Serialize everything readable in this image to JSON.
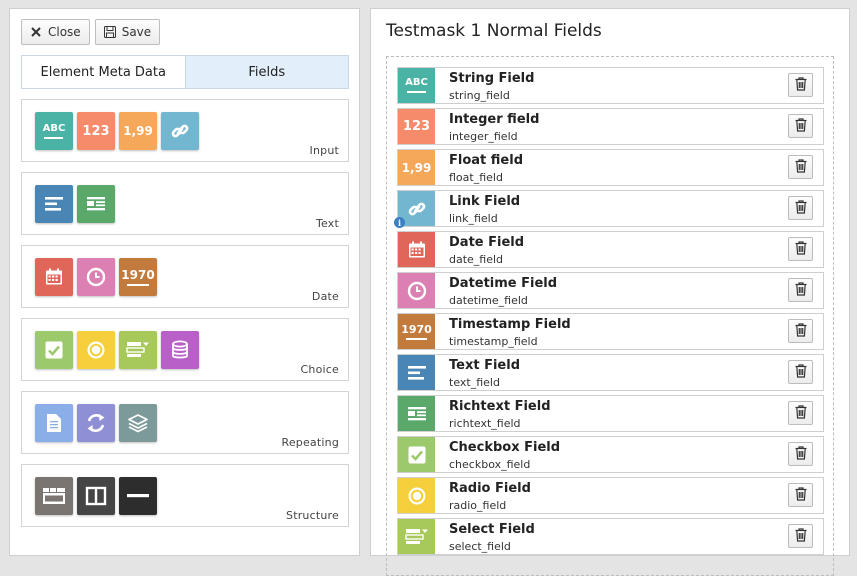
{
  "toolbar": {
    "close_label": "Close",
    "save_label": "Save"
  },
  "tabs": [
    {
      "label": "Element Meta Data",
      "active": false
    },
    {
      "label": "Fields",
      "active": true
    }
  ],
  "groups": [
    {
      "label": "Input",
      "icons": [
        {
          "name": "abc-icon",
          "text": "ABC",
          "color": "#4bb3a6"
        },
        {
          "name": "integer-icon",
          "text": "123",
          "color": "#f58b6b"
        },
        {
          "name": "float-icon",
          "text": "1,99",
          "color": "#f5a85a"
        },
        {
          "name": "link-icon",
          "text": "",
          "color": "#73b6cf"
        }
      ]
    },
    {
      "label": "Text",
      "icons": [
        {
          "name": "text-icon",
          "text": "",
          "color": "#4a86b5"
        },
        {
          "name": "richtext-icon",
          "text": "",
          "color": "#5aa96a"
        }
      ]
    },
    {
      "label": "Date",
      "icons": [
        {
          "name": "calendar-icon",
          "text": "",
          "color": "#e0665a"
        },
        {
          "name": "clock-icon",
          "text": "",
          "color": "#dc7fb3"
        },
        {
          "name": "timestamp-icon",
          "text": "1970",
          "color": "#c27b3c"
        }
      ]
    },
    {
      "label": "Choice",
      "icons": [
        {
          "name": "checkbox-icon",
          "text": "",
          "color": "#9cc96b"
        },
        {
          "name": "radio-icon",
          "text": "",
          "color": "#f5cf3c"
        },
        {
          "name": "select-icon",
          "text": "",
          "color": "#a7c95a"
        },
        {
          "name": "database-icon",
          "text": "",
          "color": "#b85fc8"
        }
      ]
    },
    {
      "label": "Repeating",
      "icons": [
        {
          "name": "document-icon",
          "text": "",
          "color": "#8aaee8"
        },
        {
          "name": "refresh-icon",
          "text": "",
          "color": "#8f8fd6"
        },
        {
          "name": "layers-icon",
          "text": "",
          "color": "#7d9a9a"
        }
      ]
    },
    {
      "label": "Structure",
      "icons": [
        {
          "name": "tab-icon",
          "text": "",
          "color": "#7a7570"
        },
        {
          "name": "columns-icon",
          "text": "",
          "color": "#454545"
        },
        {
          "name": "divider-icon",
          "text": "",
          "color": "#2d2d2d"
        }
      ]
    }
  ],
  "main": {
    "title": "Testmask 1 Normal Fields",
    "fields": [
      {
        "label": "String Field",
        "key": "string_field",
        "icon": "abc-icon",
        "icon_text": "ABC",
        "color": "#4bb3a6"
      },
      {
        "label": "Integer field",
        "key": "integer_field",
        "icon": "integer-icon",
        "icon_text": "123",
        "color": "#f58b6b"
      },
      {
        "label": "Float field",
        "key": "float_field",
        "icon": "float-icon",
        "icon_text": "1,99",
        "color": "#f5a85a"
      },
      {
        "label": "Link Field",
        "key": "link_field",
        "icon": "link-icon",
        "icon_text": "",
        "color": "#73b6cf"
      },
      {
        "label": "Date Field",
        "key": "date_field",
        "icon": "calendar-icon",
        "icon_text": "",
        "color": "#e0665a"
      },
      {
        "label": "Datetime Field",
        "key": "datetime_field",
        "icon": "clock-icon",
        "icon_text": "",
        "color": "#dc7fb3"
      },
      {
        "label": "Timestamp Field",
        "key": "timestamp_field",
        "icon": "timestamp-icon",
        "icon_text": "1970",
        "color": "#c27b3c"
      },
      {
        "label": "Text Field",
        "key": "text_field",
        "icon": "text-icon",
        "icon_text": "",
        "color": "#4a86b5"
      },
      {
        "label": "Richtext Field",
        "key": "richtext_field",
        "icon": "richtext-icon",
        "icon_text": "",
        "color": "#5aa96a"
      },
      {
        "label": "Checkbox Field",
        "key": "checkbox_field",
        "icon": "checkbox-icon",
        "icon_text": "",
        "color": "#9cc96b"
      },
      {
        "label": "Radio Field",
        "key": "radio_field",
        "icon": "radio-icon",
        "icon_text": "",
        "color": "#f5cf3c"
      },
      {
        "label": "Select Field",
        "key": "select_field",
        "icon": "select-icon",
        "icon_text": "",
        "color": "#a7c95a"
      }
    ]
  }
}
